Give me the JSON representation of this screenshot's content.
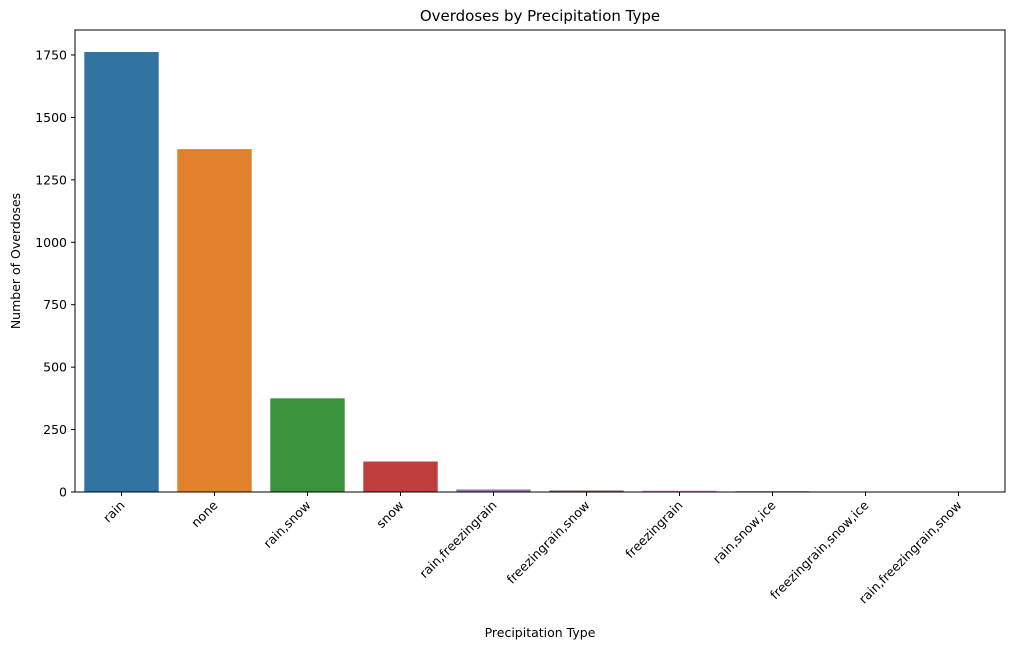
{
  "chart_data": {
    "type": "bar",
    "title": "Overdoses by Precipitation Type",
    "xlabel": "Precipitation Type",
    "ylabel": "Number of Overdoses",
    "categories": [
      "rain",
      "none",
      "rain,snow",
      "snow",
      "rain,freezingrain",
      "freezingrain,snow",
      "freezingrain",
      "rain,snow,ice",
      "freezingrain,snow,ice",
      "rain,freezingrain,snow"
    ],
    "values": [
      1762,
      1373,
      375,
      122,
      10,
      6,
      5,
      3,
      2,
      2
    ],
    "colors": [
      "#3274a1",
      "#e1812c",
      "#3a923a",
      "#c03d3e",
      "#9372b2",
      "#845b53",
      "#d684bd",
      "#7f7f7f",
      "#a9aa35",
      "#2ed0dd"
    ],
    "ylim": [
      0,
      1850
    ],
    "yticks": [
      0,
      250,
      500,
      750,
      1000,
      1250,
      1500,
      1750
    ],
    "grid": false,
    "legend": "none"
  }
}
